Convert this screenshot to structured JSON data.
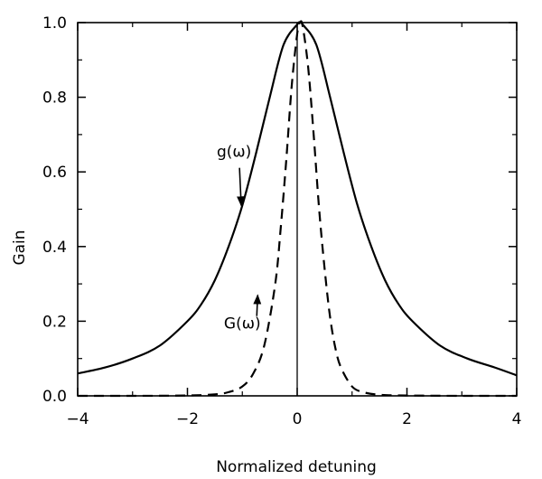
{
  "chart_data": {
    "type": "line",
    "xlabel": "Normalized detuning",
    "ylabel": "Gain",
    "xlim": [
      -4,
      4
    ],
    "ylim": [
      0,
      1.0
    ],
    "x_ticks": [
      -4,
      -2,
      0,
      2,
      4
    ],
    "x_tick_labels": [
      "−4",
      "−2",
      "0",
      "2",
      "4"
    ],
    "y_ticks": [
      0,
      0.2,
      0.4,
      0.6,
      0.8,
      1.0
    ],
    "y_tick_labels": [
      "0.0",
      "0.2",
      "0.4",
      "0.6",
      "0.8",
      "1.0"
    ],
    "grid": false,
    "vertical_reference_line_x": 0,
    "series": [
      {
        "style": "solid",
        "x": [
          -4.0,
          -3.5,
          -3.0,
          -2.5,
          -2.0,
          -1.75,
          -1.5,
          -1.25,
          -1.0,
          -0.75,
          -0.5,
          -0.25,
          0.0,
          0.05,
          0.1,
          0.35,
          0.6,
          0.85,
          1.1,
          1.35,
          1.6,
          1.85,
          2.1,
          2.6,
          3.1,
          3.6,
          4.0
        ],
        "y": [
          0.06,
          0.076,
          0.1,
          0.135,
          0.2,
          0.245,
          0.31,
          0.4,
          0.51,
          0.65,
          0.8,
          0.94,
          0.995,
          1.0,
          0.995,
          0.94,
          0.8,
          0.65,
          0.51,
          0.4,
          0.31,
          0.245,
          0.2,
          0.135,
          0.1,
          0.076,
          0.055
        ]
      },
      {
        "style": "dashed",
        "x": [
          -4.0,
          -3.0,
          -2.0,
          -1.5,
          -1.25,
          -1.0,
          -0.8,
          -0.6,
          -0.4,
          -0.3,
          -0.2,
          -0.1,
          0.0,
          0.05,
          0.1,
          0.2,
          0.3,
          0.4,
          0.5,
          0.6,
          0.7,
          0.8,
          1.0,
          1.2,
          1.5,
          2.0,
          3.0,
          4.0
        ],
        "y": [
          0.0,
          0.0,
          0.001,
          0.004,
          0.01,
          0.025,
          0.06,
          0.135,
          0.3,
          0.45,
          0.63,
          0.83,
          0.97,
          1.0,
          0.99,
          0.88,
          0.7,
          0.5,
          0.34,
          0.21,
          0.125,
          0.075,
          0.025,
          0.01,
          0.003,
          0.001,
          0.0,
          0.0
        ]
      }
    ],
    "annotations": [
      {
        "text": "g(ω)",
        "x": -1.15,
        "y": 0.64,
        "arrow_to": [
          -1.02,
          0.51
        ]
      },
      {
        "text": "G(ω)",
        "x": -1.0,
        "y": 0.18,
        "arrow_to": [
          -0.72,
          0.27
        ]
      }
    ]
  }
}
